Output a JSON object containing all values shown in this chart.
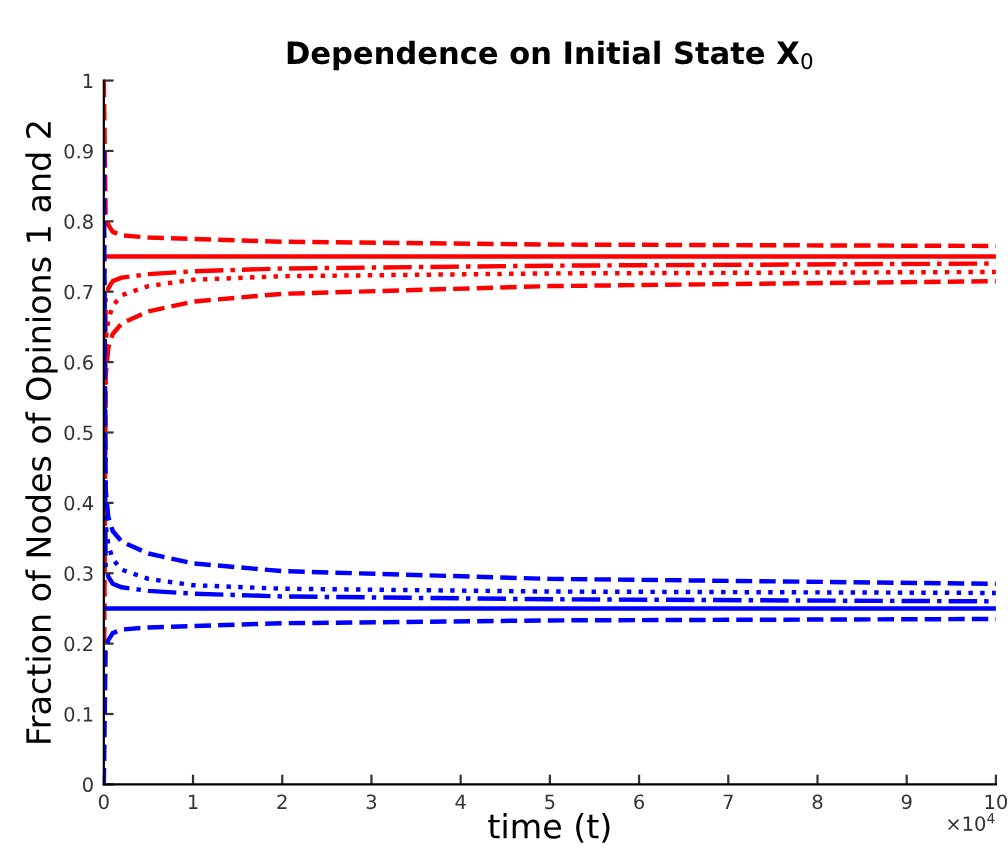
{
  "chart_data": {
    "type": "line",
    "title": "Dependence on Initial State X$_{0}$",
    "xlabel": "time (t)",
    "ylabel": "Fraction of Nodes of Opinions 1 and 2",
    "x": [
      0,
      0.02,
      0.05,
      0.1,
      0.2,
      0.5,
      1,
      2,
      5,
      10
    ],
    "series": [
      {
        "color": "#ff0000",
        "line_style": "solid",
        "values": [
          0.75,
          0.75,
          0.75,
          0.75,
          0.75,
          0.75,
          0.75,
          0.75,
          0.75,
          0.75
        ]
      },
      {
        "color": "#ff0000",
        "line_style": "dashed",
        "values": [
          1.0,
          0.81,
          0.795,
          0.785,
          0.78,
          0.777,
          0.775,
          0.771,
          0.767,
          0.765
        ]
      },
      {
        "color": "#ff0000",
        "line_style": "dashdot",
        "values": [
          0.3,
          0.69,
          0.705,
          0.715,
          0.72,
          0.725,
          0.729,
          0.733,
          0.737,
          0.74
        ]
      },
      {
        "color": "#ff0000",
        "line_style": "dotted",
        "values": [
          0.2,
          0.63,
          0.66,
          0.68,
          0.695,
          0.708,
          0.717,
          0.722,
          0.726,
          0.728
        ]
      },
      {
        "color": "#ff0000",
        "line_style": "dashed",
        "values": [
          0.1,
          0.58,
          0.62,
          0.64,
          0.655,
          0.672,
          0.686,
          0.697,
          0.708,
          0.715
        ]
      },
      {
        "color": "#0000ff",
        "line_style": "solid",
        "values": [
          0.25,
          0.25,
          0.25,
          0.25,
          0.25,
          0.25,
          0.25,
          0.25,
          0.25,
          0.25
        ]
      },
      {
        "color": "#0000ff",
        "line_style": "dashed",
        "values": [
          0.0,
          0.19,
          0.205,
          0.215,
          0.22,
          0.223,
          0.225,
          0.229,
          0.233,
          0.235
        ]
      },
      {
        "color": "#0000ff",
        "line_style": "dashdot",
        "values": [
          0.7,
          0.31,
          0.295,
          0.285,
          0.28,
          0.275,
          0.271,
          0.267,
          0.263,
          0.26
        ]
      },
      {
        "color": "#0000ff",
        "line_style": "dotted",
        "values": [
          0.8,
          0.37,
          0.34,
          0.32,
          0.305,
          0.292,
          0.283,
          0.278,
          0.274,
          0.272
        ]
      },
      {
        "color": "#0000ff",
        "line_style": "dashed",
        "values": [
          0.9,
          0.42,
          0.38,
          0.36,
          0.345,
          0.328,
          0.314,
          0.303,
          0.292,
          0.285
        ]
      }
    ],
    "xlim": [
      0,
      10
    ],
    "xticks": [
      0,
      1,
      2,
      3,
      4,
      5,
      6,
      7,
      8,
      9,
      10
    ],
    "ylim": [
      0,
      1
    ],
    "yticks": [
      0,
      0.1,
      0.2,
      0.3,
      0.4,
      0.5,
      0.6,
      0.7,
      0.8,
      0.9,
      1
    ],
    "annotations": [
      "×10$^{4}$"
    ],
    "grid": false,
    "legend": false
  }
}
